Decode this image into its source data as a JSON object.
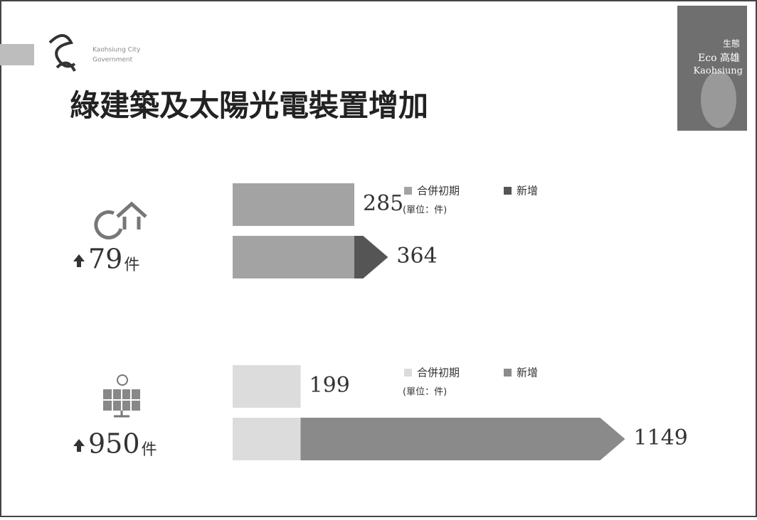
{
  "header": {
    "org_line1": "Kaohsiung City",
    "org_line2": "Government",
    "badge_line1": "生態",
    "badge_line2": "Eco 高雄",
    "badge_line3": "Kaohsiung",
    "title": "綠建築及太陽光電裝置增加"
  },
  "chart_data": [
    {
      "type": "bar",
      "stacked": true,
      "orientation": "horizontal",
      "categories": [
        null,
        null
      ],
      "series": [
        {
          "name": "合併初期",
          "color": "#a3a3a3",
          "values": [
            285,
            285
          ]
        },
        {
          "name": "新增",
          "color": "#555555",
          "values": [
            null,
            79
          ]
        }
      ],
      "totals": [
        285,
        364
      ],
      "unit": "(單位：件)",
      "increase_suffix": "件",
      "xlim": [
        0,
        1000
      ]
    },
    {
      "type": "bar",
      "stacked": true,
      "orientation": "horizontal",
      "categories": [
        null,
        null
      ],
      "series": [
        {
          "name": "合併初期",
          "color": "#dcdcdc",
          "values": [
            199,
            199
          ]
        },
        {
          "name": "新增",
          "color": "#8a8a8a",
          "values": [
            null,
            950
          ]
        }
      ],
      "totals": [
        199,
        1149
      ],
      "unit": "(單位：件)",
      "increase_suffix": "件",
      "xlim": [
        0,
        1250
      ]
    }
  ]
}
